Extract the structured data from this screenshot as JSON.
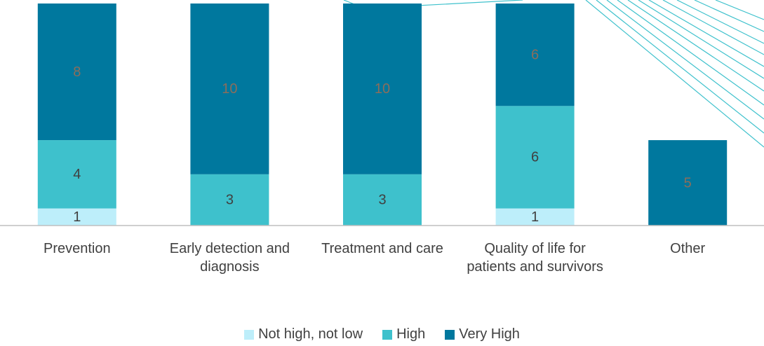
{
  "chart_data": {
    "type": "stacked_bar",
    "categories": [
      "Prevention",
      "Early detection and diagnosis",
      "Treatment and care",
      "Quality of life for patients and survivors",
      "Other"
    ],
    "series": [
      {
        "name": "Not high, not low",
        "color": "#bdeefa",
        "label_color": "#404040",
        "values": [
          1,
          null,
          null,
          1,
          null
        ]
      },
      {
        "name": "High",
        "color": "#3ec1cc",
        "label_color": "#404040",
        "values": [
          4,
          3,
          3,
          6,
          null
        ]
      },
      {
        "name": "Very High",
        "color": "#00789e",
        "label_color": "#8a6e5c",
        "values": [
          8,
          10,
          10,
          6,
          5
        ]
      }
    ],
    "ylim": [
      0,
      13
    ]
  }
}
